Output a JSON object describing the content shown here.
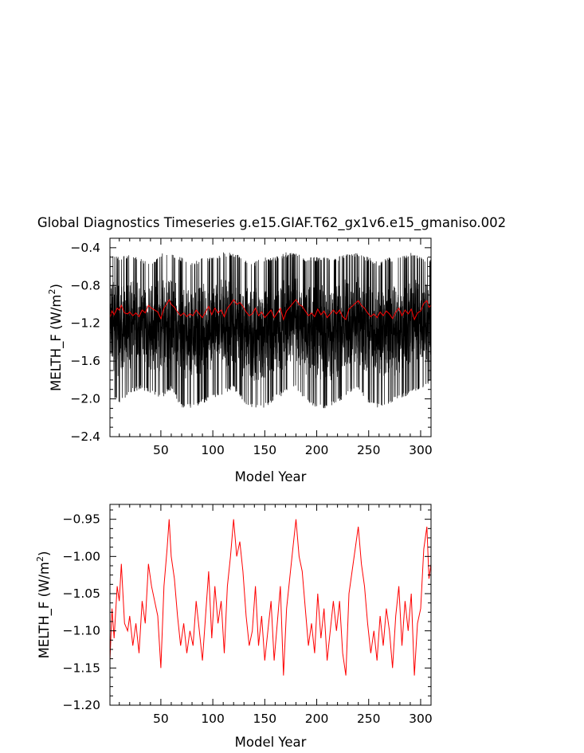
{
  "title": "Global Diagnostics Timeseries g.e15.GIAF.T62_gx1v6.e15_gmaniso.002",
  "chart_data": [
    {
      "type": "line",
      "xlabel": "Model Year",
      "ylabel_main": "MELTH_F (W/m",
      "ylabel_sup": "2",
      "ylabel_end": ")",
      "xlim": [
        1,
        310
      ],
      "ylim": [
        -2.4,
        -0.3
      ],
      "xticks": [
        50,
        100,
        150,
        200,
        250,
        300
      ],
      "xtick_labels": [
        "50",
        "100",
        "150",
        "200",
        "250",
        "300"
      ],
      "yticks": [
        -2.4,
        -2.0,
        -1.6,
        -1.2,
        -0.8,
        -0.4
      ],
      "ytick_labels": [
        "−2.4",
        "−2.0",
        "−1.6",
        "−1.2",
        "−0.8",
        "−0.4"
      ],
      "series": [
        {
          "color": "#000000",
          "style": "monthly values, dense band",
          "envelope_x": [
            1,
            10,
            20,
            30,
            40,
            50,
            60,
            70,
            80,
            90,
            100,
            110,
            120,
            130,
            140,
            150,
            160,
            170,
            180,
            190,
            200,
            210,
            220,
            230,
            240,
            250,
            260,
            270,
            280,
            290,
            300,
            310
          ],
          "envelope_min": [
            -1.95,
            -2.05,
            -1.95,
            -1.9,
            -1.95,
            -2.0,
            -1.9,
            -2.1,
            -2.1,
            -2.05,
            -2.0,
            -1.95,
            -1.9,
            -2.05,
            -2.1,
            -2.1,
            -2.0,
            -1.95,
            -1.9,
            -2.05,
            -2.1,
            -2.1,
            -2.05,
            -1.95,
            -1.9,
            -2.05,
            -2.1,
            -2.05,
            -2.0,
            -1.95,
            -1.9,
            -1.85
          ],
          "envelope_max": [
            -0.45,
            -0.5,
            -0.45,
            -0.5,
            -0.55,
            -0.45,
            -0.45,
            -0.5,
            -0.55,
            -0.5,
            -0.5,
            -0.45,
            -0.45,
            -0.5,
            -0.55,
            -0.5,
            -0.5,
            -0.45,
            -0.45,
            -0.5,
            -0.5,
            -0.5,
            -0.5,
            -0.45,
            -0.45,
            -0.5,
            -0.55,
            -0.5,
            -0.5,
            -0.45,
            -0.5,
            -0.5
          ]
        },
        {
          "color": "#ff0000",
          "style": "annual mean (same as lower panel)"
        }
      ]
    },
    {
      "type": "line",
      "xlabel": "Model Year",
      "ylabel_main": "MELTH_F (W/m",
      "ylabel_sup": "2",
      "ylabel_end": ")",
      "xlim": [
        1,
        310
      ],
      "ylim": [
        -1.2,
        -0.93
      ],
      "xticks": [
        50,
        100,
        150,
        200,
        250,
        300
      ],
      "xtick_labels": [
        "50",
        "100",
        "150",
        "200",
        "250",
        "300"
      ],
      "yticks": [
        -1.2,
        -1.15,
        -1.1,
        -1.05,
        -1.0,
        -0.95
      ],
      "ytick_labels": [
        "−1.20",
        "−1.15",
        "−1.10",
        "−1.05",
        "−1.00",
        "−0.95"
      ],
      "series": [
        {
          "color": "#ff0000",
          "style": "annual mean",
          "x": [
            1,
            3,
            5,
            8,
            10,
            12,
            15,
            18,
            20,
            23,
            26,
            29,
            32,
            35,
            38,
            41,
            44,
            47,
            50,
            53,
            56,
            58,
            60,
            63,
            66,
            69,
            72,
            75,
            78,
            81,
            84,
            87,
            90,
            93,
            96,
            99,
            102,
            105,
            108,
            111,
            114,
            117,
            120,
            123,
            126,
            129,
            132,
            135,
            138,
            141,
            144,
            147,
            150,
            153,
            156,
            159,
            162,
            165,
            168,
            171,
            174,
            177,
            180,
            183,
            186,
            189,
            192,
            195,
            198,
            201,
            204,
            207,
            210,
            213,
            216,
            219,
            222,
            225,
            228,
            231,
            234,
            237,
            240,
            243,
            246,
            249,
            252,
            255,
            258,
            261,
            264,
            267,
            270,
            273,
            276,
            279,
            282,
            285,
            288,
            291,
            294,
            297,
            300,
            303,
            306,
            308,
            310
          ],
          "y": [
            -1.14,
            -1.07,
            -1.11,
            -1.04,
            -1.06,
            -1.01,
            -1.09,
            -1.1,
            -1.08,
            -1.12,
            -1.09,
            -1.13,
            -1.06,
            -1.09,
            -1.01,
            -1.04,
            -1.06,
            -1.08,
            -1.15,
            -1.04,
            -0.99,
            -0.95,
            -1.0,
            -1.03,
            -1.08,
            -1.12,
            -1.09,
            -1.13,
            -1.1,
            -1.12,
            -1.06,
            -1.1,
            -1.14,
            -1.08,
            -1.02,
            -1.11,
            -1.04,
            -1.09,
            -1.06,
            -1.13,
            -1.04,
            -1.0,
            -0.95,
            -1.0,
            -0.98,
            -1.02,
            -1.08,
            -1.12,
            -1.1,
            -1.04,
            -1.12,
            -1.08,
            -1.14,
            -1.1,
            -1.06,
            -1.14,
            -1.09,
            -1.04,
            -1.16,
            -1.07,
            -1.03,
            -0.99,
            -0.95,
            -1.0,
            -1.02,
            -1.07,
            -1.12,
            -1.09,
            -1.13,
            -1.05,
            -1.11,
            -1.07,
            -1.14,
            -1.1,
            -1.06,
            -1.1,
            -1.06,
            -1.13,
            -1.16,
            -1.05,
            -1.02,
            -0.99,
            -0.96,
            -1.01,
            -1.04,
            -1.09,
            -1.13,
            -1.1,
            -1.14,
            -1.08,
            -1.12,
            -1.07,
            -1.1,
            -1.15,
            -1.08,
            -1.04,
            -1.12,
            -1.06,
            -1.1,
            -1.05,
            -1.16,
            -1.09,
            -1.07,
            -0.99,
            -0.96,
            -1.03,
            -1.01
          ]
        }
      ]
    }
  ]
}
